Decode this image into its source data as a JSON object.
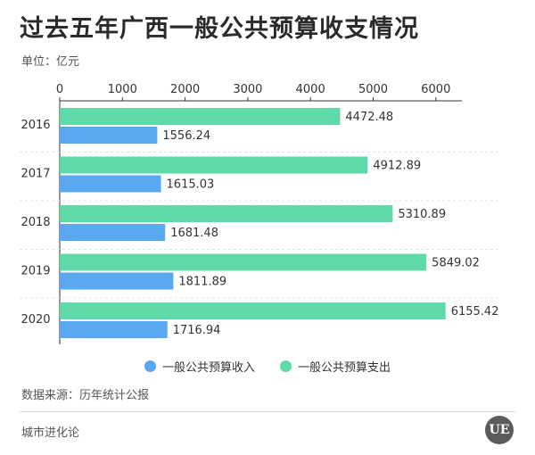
{
  "chart_data": {
    "type": "bar",
    "orientation": "horizontal",
    "title": "过去五年广西一般公共预算收支情况",
    "unit_label": "单位：亿元",
    "categories": [
      "2016",
      "2017",
      "2018",
      "2019",
      "2020"
    ],
    "series": [
      {
        "name": "一般公共预算收入",
        "color": "#5aa8f0",
        "values": [
          1556.24,
          1615.03,
          1681.48,
          1811.89,
          1716.94
        ]
      },
      {
        "name": "一般公共预算支出",
        "color": "#5fd9a8",
        "values": [
          4472.48,
          4912.89,
          5310.89,
          5849.02,
          6155.42
        ]
      }
    ],
    "xlim": [
      0,
      6500
    ],
    "x_ticks": [
      0,
      1000,
      2000,
      3000,
      4000,
      5000,
      6000
    ],
    "x_tick_labels": [
      "0",
      "1000",
      "2000",
      "3000",
      "4000",
      "5000",
      "6000"
    ],
    "axis_position": "top",
    "grid": false,
    "legend_position": "bottom-center"
  },
  "source": "数据来源：历年统计公报",
  "footer": "城市进化论",
  "logo_text": "UE"
}
